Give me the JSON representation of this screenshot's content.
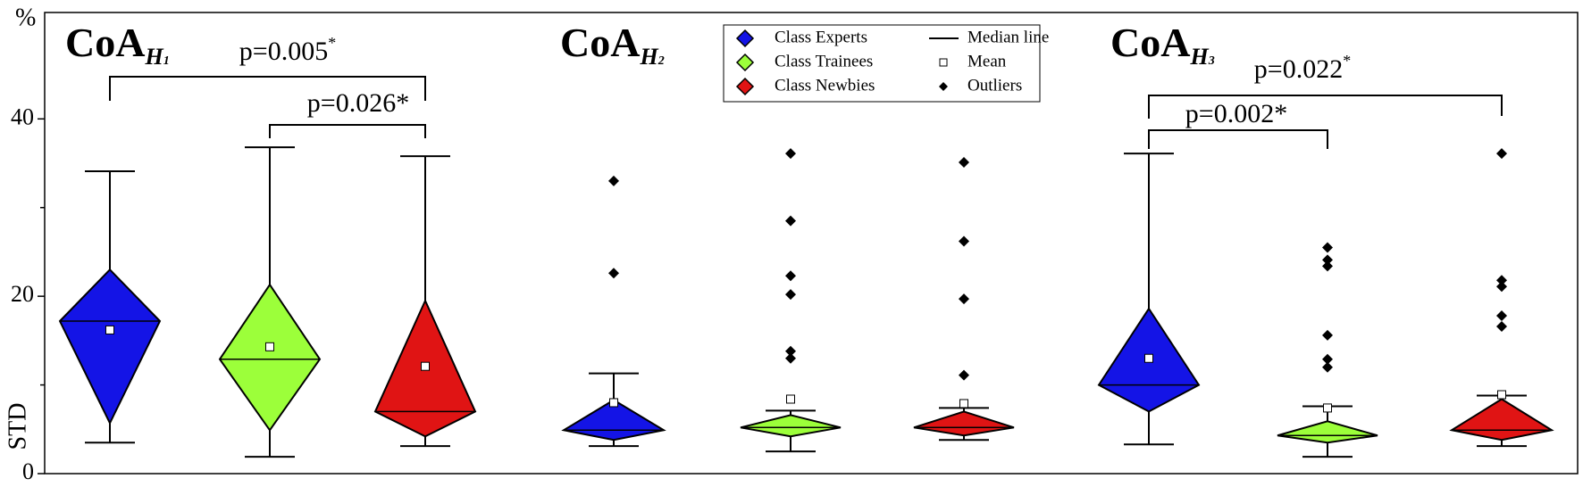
{
  "chart_data": {
    "type": "box",
    "y_unit_label": "%",
    "y_label": "STD",
    "ylim": [
      0,
      52
    ],
    "yticks": [
      0,
      20,
      40
    ],
    "minor_yticks": [
      10,
      30
    ],
    "groups": [
      {
        "label": "CoA",
        "subscript": "H",
        "index": "1"
      },
      {
        "label": "CoA",
        "subscript": "H",
        "index": "2"
      },
      {
        "label": "CoA",
        "subscript": "H",
        "index": "3"
      }
    ],
    "series": [
      {
        "name": "Class Experts",
        "color": "#1414e6",
        "boxes": [
          {
            "min": 3.5,
            "q1": 5.7,
            "median": 17.2,
            "q3": 23.0,
            "max": 34.1,
            "mean": 16.2,
            "outliers": []
          },
          {
            "min": 3.1,
            "q1": 3.8,
            "median": 4.9,
            "q3": 8.3,
            "max": 11.3,
            "mean": 8.0,
            "outliers": [
              33.0,
              22.6
            ]
          },
          {
            "min": 3.3,
            "q1": 7.0,
            "median": 10.0,
            "q3": 18.6,
            "max": 36.1,
            "mean": 13.0,
            "outliers": []
          }
        ]
      },
      {
        "name": "Class Trainees",
        "color": "#9cff3a",
        "boxes": [
          {
            "min": 1.9,
            "q1": 4.9,
            "median": 12.9,
            "q3": 21.3,
            "max": 36.8,
            "mean": 14.3,
            "outliers": []
          },
          {
            "min": 2.5,
            "q1": 4.2,
            "median": 5.2,
            "q3": 6.6,
            "max": 7.1,
            "mean": 8.4,
            "outliers": [
              36.1,
              28.5,
              22.3,
              20.2,
              13.8,
              13.0
            ]
          },
          {
            "min": 1.9,
            "q1": 3.5,
            "median": 4.3,
            "q3": 5.9,
            "max": 7.6,
            "mean": 7.4,
            "outliers": [
              25.5,
              24.1,
              23.4,
              15.6,
              12.9,
              12.0
            ]
          }
        ]
      },
      {
        "name": "Class Newbies",
        "color": "#e01414",
        "boxes": [
          {
            "min": 3.1,
            "q1": 4.2,
            "median": 7.0,
            "q3": 19.5,
            "max": 35.8,
            "mean": 12.1,
            "outliers": []
          },
          {
            "min": 3.8,
            "q1": 4.3,
            "median": 5.2,
            "q3": 7.0,
            "max": 7.4,
            "mean": 7.9,
            "outliers": [
              35.1,
              26.2,
              19.7,
              11.1
            ]
          },
          {
            "min": 3.1,
            "q1": 3.8,
            "median": 4.9,
            "q3": 8.4,
            "max": 8.8,
            "mean": 8.9,
            "outliers": [
              36.1,
              21.8,
              21.1,
              17.8,
              16.6
            ]
          }
        ]
      }
    ],
    "legend_extras": [
      "Median line",
      "Mean",
      "Outliers"
    ],
    "annotations": [
      {
        "label": "p=0.005",
        "superscript": "*"
      },
      {
        "label": "p=0.026*"
      },
      {
        "label": "p=0.022",
        "superscript": "*"
      },
      {
        "label": "p=0.002*"
      }
    ]
  }
}
